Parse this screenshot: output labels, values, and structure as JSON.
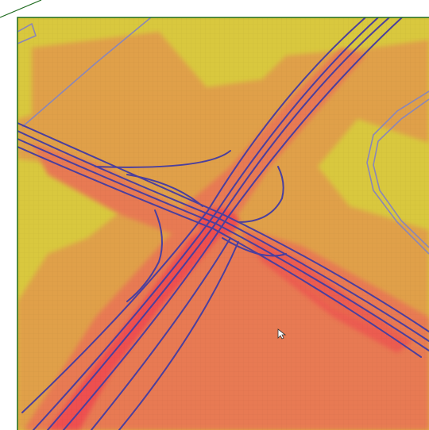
{
  "map": {
    "colors": {
      "frame_border": "#1f6b1f",
      "low_value": "#d9c83e",
      "mid_value": "#e0a048",
      "high_value": "#e87a52",
      "peak_value": "#ee4f4f",
      "highway": "#4a3f9e",
      "minor_road": "#8a86b8"
    },
    "legend": [],
    "cursor_icon": "mouse-pointer-icon"
  }
}
